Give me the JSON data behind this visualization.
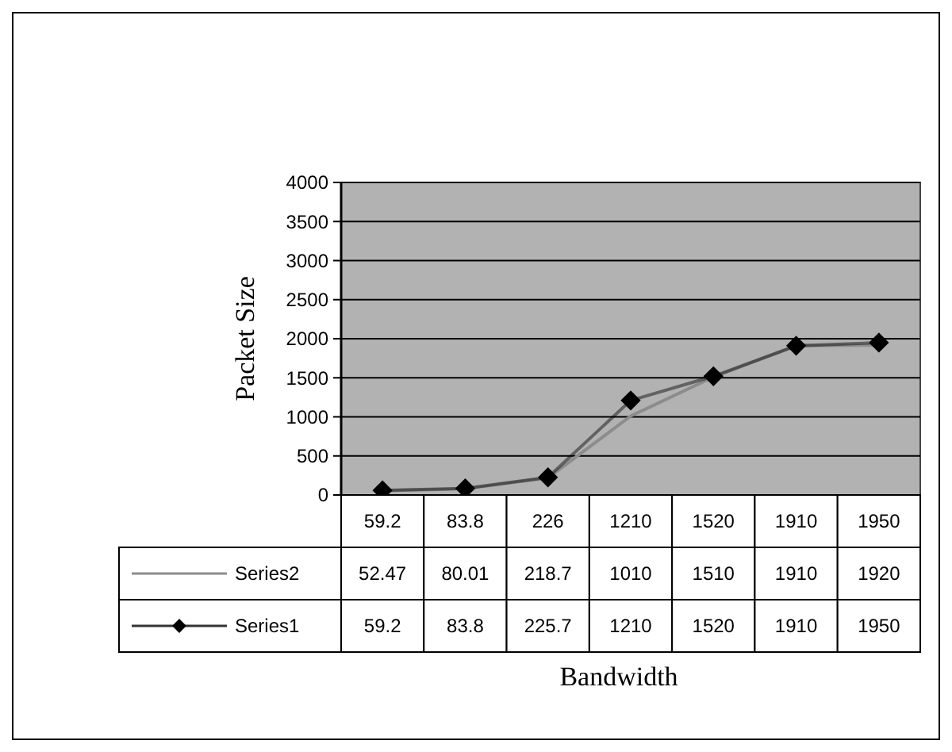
{
  "chart_data": {
    "type": "line",
    "xlabel": "Bandwidth",
    "ylabel": "Packet Size",
    "categories": [
      "59.2",
      "83.8",
      "226",
      "1210",
      "1520",
      "1910",
      "1950"
    ],
    "series": [
      {
        "name": "Series2",
        "color": "#8c8c8c",
        "marker": "none",
        "values": [
          52.47,
          80.01,
          218.7,
          1010,
          1510,
          1910,
          1920
        ]
      },
      {
        "name": "Series1",
        "color": "#000000",
        "marker": "diamond",
        "values": [
          59.2,
          83.8,
          225.7,
          1210,
          1520,
          1910,
          1950
        ]
      }
    ],
    "ylim": [
      0,
      4000
    ],
    "yticks": [
      0,
      500,
      1000,
      1500,
      2000,
      2500,
      3000,
      3500,
      4000
    ],
    "grid": "y",
    "data_labels": true,
    "legend": "bottom left"
  }
}
